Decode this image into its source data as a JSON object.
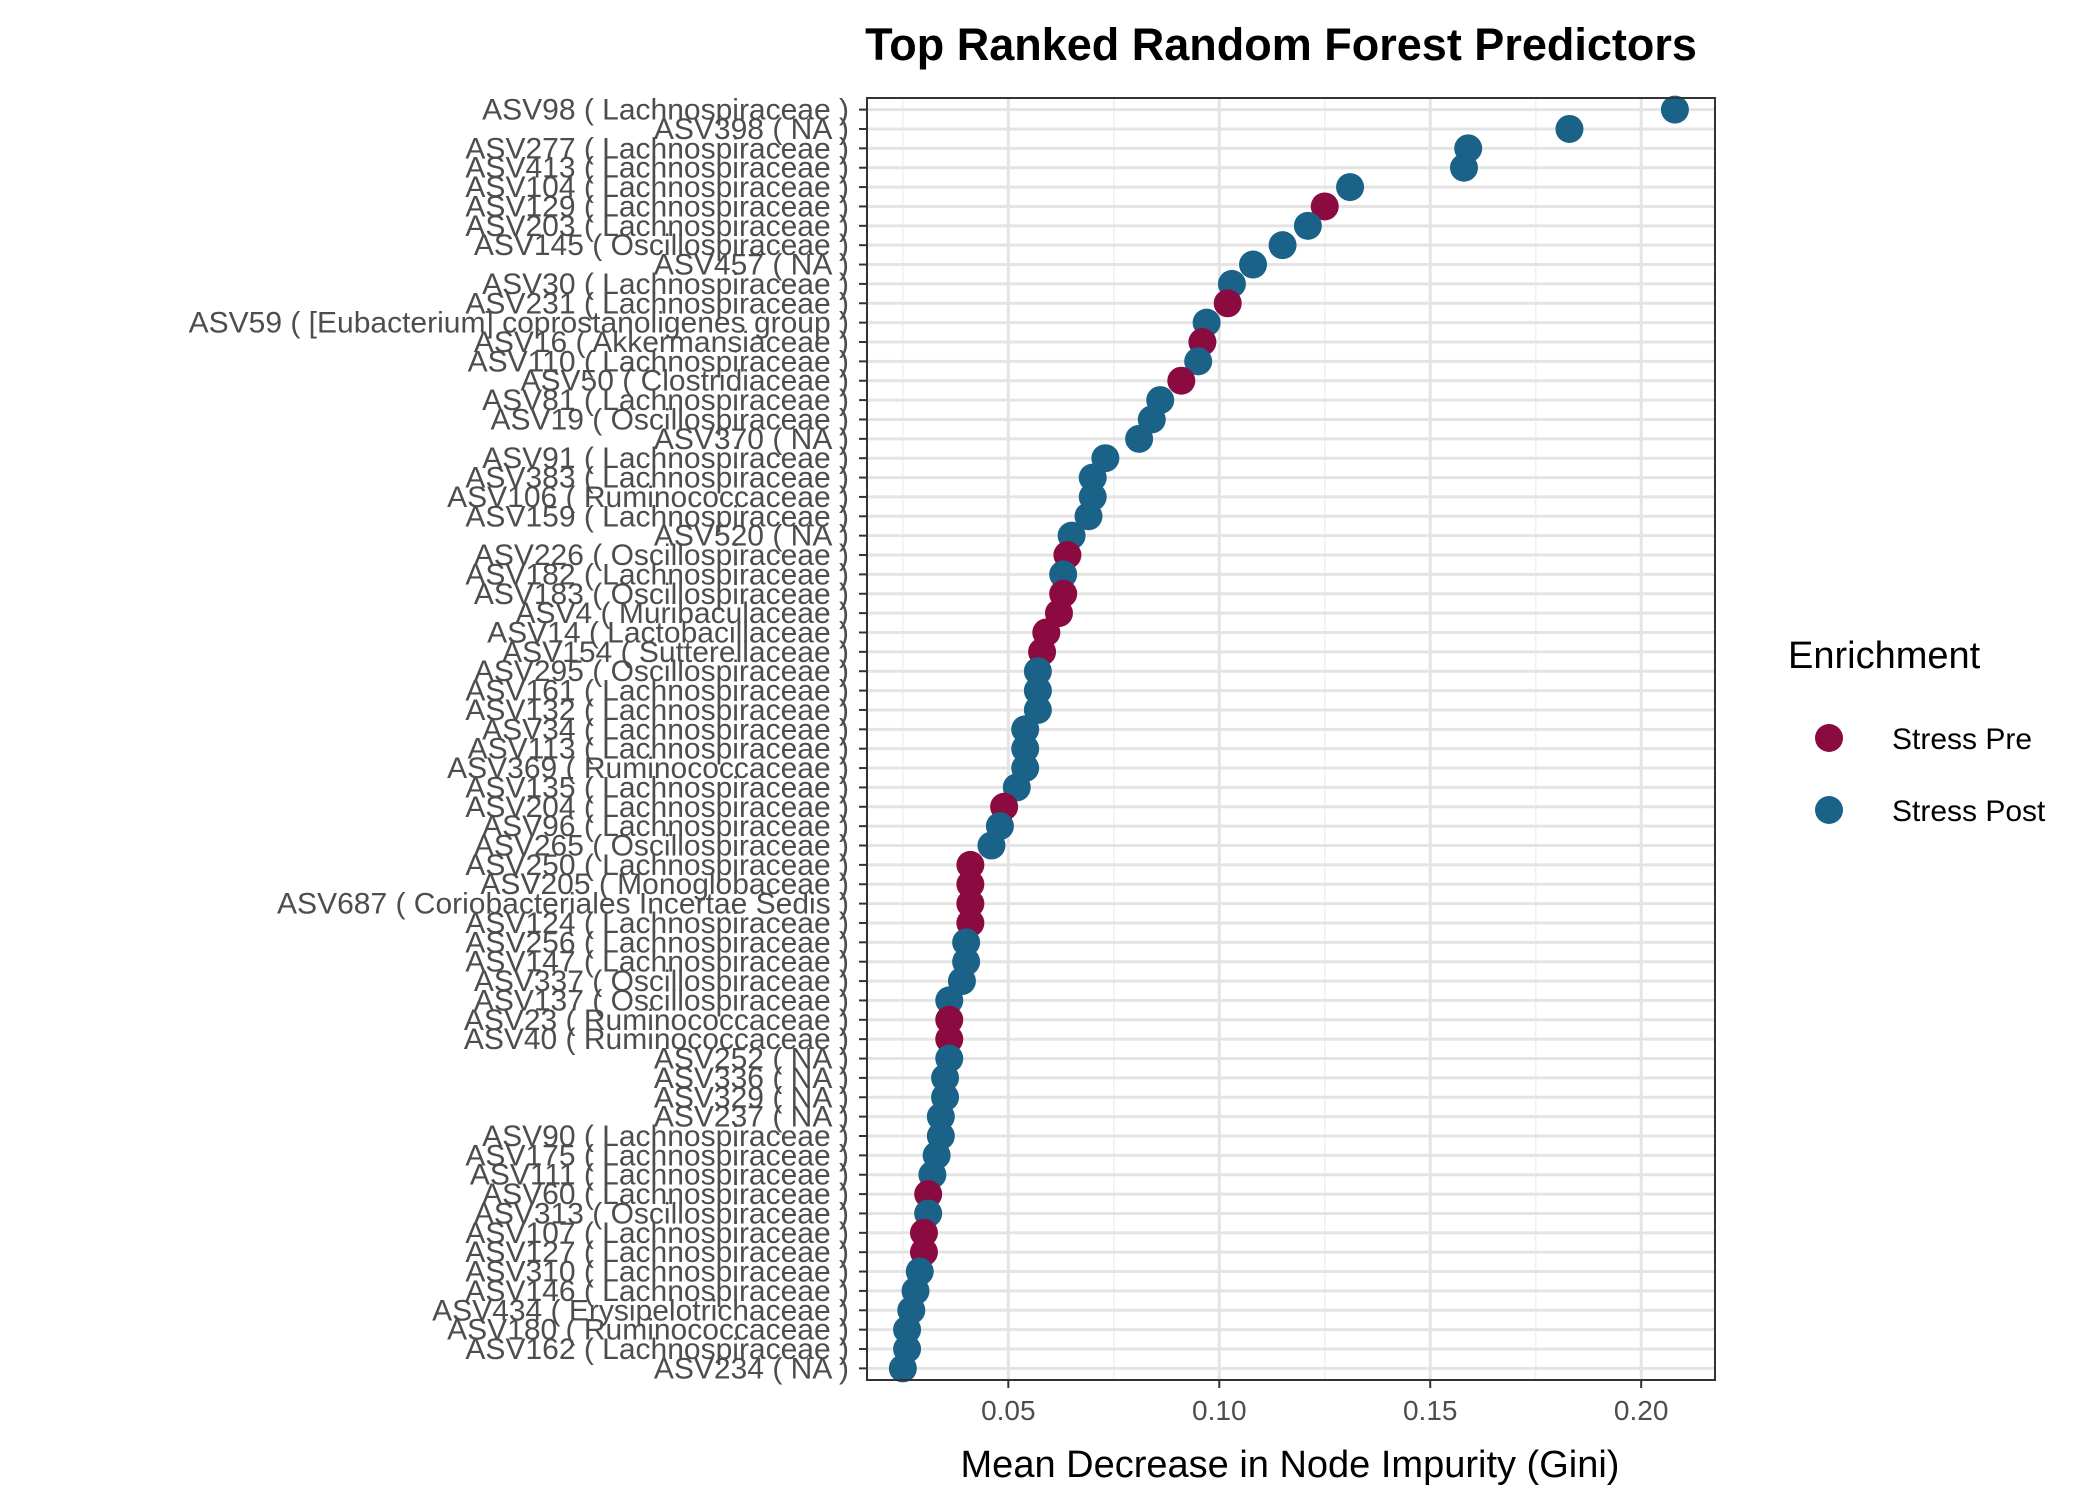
{
  "chart_data": {
    "type": "scatter",
    "title": "Top Ranked Random Forest Predictors",
    "xlabel": "Mean Decrease in Node Impurity (Gini)",
    "ylabel": "",
    "xlim": [
      0.0165,
      0.2175
    ],
    "xticks": [
      0.05,
      0.1,
      0.15,
      0.2
    ],
    "xtick_labels": [
      "0.05",
      "0.10",
      "0.15",
      "0.20"
    ],
    "grid": true,
    "legend": {
      "title": "Enrichment",
      "position": "right",
      "entries": [
        {
          "name": "Stress Pre",
          "color": "#8b0a3f"
        },
        {
          "name": "Stress Post",
          "color": "#1b6288"
        }
      ]
    },
    "points": [
      {
        "label": "ASV98  ( Lachnospiraceae )",
        "x": 0.208,
        "group": "Stress Post"
      },
      {
        "label": "ASV398  ( NA )",
        "x": 0.183,
        "group": "Stress Post"
      },
      {
        "label": "ASV277  ( Lachnospiraceae )",
        "x": 0.159,
        "group": "Stress Post"
      },
      {
        "label": "ASV413  ( Lachnospiraceae )",
        "x": 0.158,
        "group": "Stress Post"
      },
      {
        "label": "ASV104  ( Lachnospiraceae )",
        "x": 0.131,
        "group": "Stress Post"
      },
      {
        "label": "ASV129  ( Lachnospiraceae )",
        "x": 0.125,
        "group": "Stress Pre"
      },
      {
        "label": "ASV203  ( Lachnospiraceae )",
        "x": 0.121,
        "group": "Stress Post"
      },
      {
        "label": "ASV145  ( Oscillospiraceae )",
        "x": 0.115,
        "group": "Stress Post"
      },
      {
        "label": "ASV457  ( NA )",
        "x": 0.108,
        "group": "Stress Post"
      },
      {
        "label": "ASV30  ( Lachnospiraceae )",
        "x": 0.103,
        "group": "Stress Post"
      },
      {
        "label": "ASV231  ( Lachnospiraceae )",
        "x": 0.102,
        "group": "Stress Pre"
      },
      {
        "label": "ASV59  ( [Eubacterium] coprostanoligenes group )",
        "x": 0.097,
        "group": "Stress Post"
      },
      {
        "label": "ASV16  ( Akkermansiaceae )",
        "x": 0.096,
        "group": "Stress Pre"
      },
      {
        "label": "ASV110  ( Lachnospiraceae )",
        "x": 0.095,
        "group": "Stress Post"
      },
      {
        "label": "ASV50  ( Clostridiaceae )",
        "x": 0.091,
        "group": "Stress Pre"
      },
      {
        "label": "ASV81  ( Lachnospiraceae )",
        "x": 0.086,
        "group": "Stress Post"
      },
      {
        "label": "ASV19  ( Oscillospiraceae )",
        "x": 0.084,
        "group": "Stress Post"
      },
      {
        "label": "ASV370  ( NA )",
        "x": 0.081,
        "group": "Stress Post"
      },
      {
        "label": "ASV91  ( Lachnospiraceae )",
        "x": 0.073,
        "group": "Stress Post"
      },
      {
        "label": "ASV383  ( Lachnospiraceae )",
        "x": 0.07,
        "group": "Stress Post"
      },
      {
        "label": "ASV106  ( Ruminococcaceae )",
        "x": 0.07,
        "group": "Stress Post"
      },
      {
        "label": "ASV159  ( Lachnospiraceae )",
        "x": 0.069,
        "group": "Stress Post"
      },
      {
        "label": "ASV520  ( NA )",
        "x": 0.065,
        "group": "Stress Post"
      },
      {
        "label": "ASV226  ( Oscillospiraceae )",
        "x": 0.064,
        "group": "Stress Pre"
      },
      {
        "label": "ASV182  ( Lachnospiraceae )",
        "x": 0.063,
        "group": "Stress Post"
      },
      {
        "label": "ASV183  ( Oscillospiraceae )",
        "x": 0.063,
        "group": "Stress Pre"
      },
      {
        "label": "ASV4  ( Muribaculaceae )",
        "x": 0.062,
        "group": "Stress Pre"
      },
      {
        "label": "ASV14  ( Lactobacillaceae )",
        "x": 0.059,
        "group": "Stress Pre"
      },
      {
        "label": "ASV154  ( Sutterellaceae )",
        "x": 0.058,
        "group": "Stress Pre"
      },
      {
        "label": "ASV295  ( Oscillospiraceae )",
        "x": 0.057,
        "group": "Stress Post"
      },
      {
        "label": "ASV161  ( Lachnospiraceae )",
        "x": 0.057,
        "group": "Stress Post"
      },
      {
        "label": "ASV132  ( Lachnospiraceae )",
        "x": 0.057,
        "group": "Stress Post"
      },
      {
        "label": "ASV34  ( Lachnospiraceae )",
        "x": 0.054,
        "group": "Stress Post"
      },
      {
        "label": "ASV113  ( Lachnospiraceae )",
        "x": 0.054,
        "group": "Stress Post"
      },
      {
        "label": "ASV369  ( Ruminococcaceae )",
        "x": 0.054,
        "group": "Stress Post"
      },
      {
        "label": "ASV135  ( Lachnospiraceae )",
        "x": 0.052,
        "group": "Stress Post"
      },
      {
        "label": "ASV204  ( Lachnospiraceae )",
        "x": 0.049,
        "group": "Stress Pre"
      },
      {
        "label": "ASV96  ( Lachnospiraceae )",
        "x": 0.048,
        "group": "Stress Post"
      },
      {
        "label": "ASV265  ( Oscillospiraceae )",
        "x": 0.046,
        "group": "Stress Post"
      },
      {
        "label": "ASV250  ( Lachnospiraceae )",
        "x": 0.041,
        "group": "Stress Pre"
      },
      {
        "label": "ASV205  ( Monoglobaceae )",
        "x": 0.041,
        "group": "Stress Pre"
      },
      {
        "label": "ASV687  ( Coriobacteriales Incertae Sedis )",
        "x": 0.041,
        "group": "Stress Pre"
      },
      {
        "label": "ASV124  ( Lachnospiraceae )",
        "x": 0.041,
        "group": "Stress Pre"
      },
      {
        "label": "ASV256  ( Lachnospiraceae )",
        "x": 0.04,
        "group": "Stress Post"
      },
      {
        "label": "ASV147  ( Lachnospiraceae )",
        "x": 0.04,
        "group": "Stress Post"
      },
      {
        "label": "ASV337  ( Oscillospiraceae )",
        "x": 0.039,
        "group": "Stress Post"
      },
      {
        "label": "ASV137  ( Oscillospiraceae )",
        "x": 0.036,
        "group": "Stress Post"
      },
      {
        "label": "ASV23  ( Ruminococcaceae )",
        "x": 0.036,
        "group": "Stress Pre"
      },
      {
        "label": "ASV40  ( Ruminococcaceae )",
        "x": 0.036,
        "group": "Stress Pre"
      },
      {
        "label": "ASV252  ( NA )",
        "x": 0.036,
        "group": "Stress Post"
      },
      {
        "label": "ASV336  ( NA )",
        "x": 0.035,
        "group": "Stress Post"
      },
      {
        "label": "ASV329  ( NA )",
        "x": 0.035,
        "group": "Stress Post"
      },
      {
        "label": "ASV237  ( NA )",
        "x": 0.034,
        "group": "Stress Post"
      },
      {
        "label": "ASV90  ( Lachnospiraceae )",
        "x": 0.034,
        "group": "Stress Post"
      },
      {
        "label": "ASV175  ( Lachnospiraceae )",
        "x": 0.033,
        "group": "Stress Post"
      },
      {
        "label": "ASV111  ( Lachnospiraceae )",
        "x": 0.032,
        "group": "Stress Post"
      },
      {
        "label": "ASV60  ( Lachnospiraceae )",
        "x": 0.031,
        "group": "Stress Pre"
      },
      {
        "label": "ASV313  ( Oscillospiraceae )",
        "x": 0.031,
        "group": "Stress Post"
      },
      {
        "label": "ASV107  ( Lachnospiraceae )",
        "x": 0.03,
        "group": "Stress Pre"
      },
      {
        "label": "ASV127  ( Lachnospiraceae )",
        "x": 0.03,
        "group": "Stress Pre"
      },
      {
        "label": "ASV310  ( Lachnospiraceae )",
        "x": 0.029,
        "group": "Stress Post"
      },
      {
        "label": "ASV146  ( Lachnospiraceae )",
        "x": 0.028,
        "group": "Stress Post"
      },
      {
        "label": "ASV434  ( Erysipelotrichaceae )",
        "x": 0.027,
        "group": "Stress Post"
      },
      {
        "label": "ASV180  ( Ruminococcaceae )",
        "x": 0.026,
        "group": "Stress Post"
      },
      {
        "label": "ASV162  ( Lachnospiraceae )",
        "x": 0.026,
        "group": "Stress Post"
      },
      {
        "label": "ASV234  ( NA )",
        "x": 0.025,
        "group": "Stress Post"
      }
    ]
  }
}
